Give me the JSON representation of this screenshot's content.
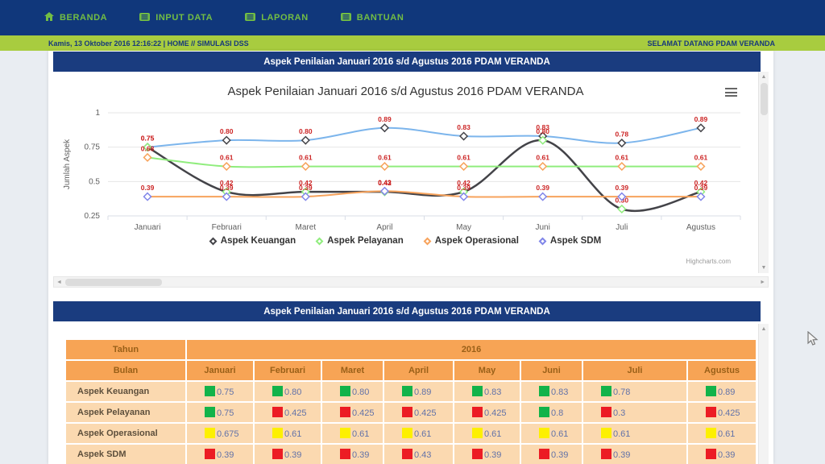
{
  "nav": {
    "items": [
      {
        "label": "BERANDA"
      },
      {
        "label": "INPUT DATA"
      },
      {
        "label": "LAPORAN"
      },
      {
        "label": "BANTUAN"
      }
    ]
  },
  "breadcrumb": {
    "left": "Kamis, 13 Oktober 2016 12:16:22 | HOME // SIMULASI DSS",
    "right": "SELAMAT DATANG PDAM VERANDA"
  },
  "panels": {
    "chart_header": "Aspek Penilaian Januari 2016 s/d Agustus 2016 PDAM VERANDA",
    "table_header": "Aspek Penilaian Januari 2016 s/d Agustus 2016 PDAM VERANDA"
  },
  "chart_data": {
    "type": "line",
    "title": "Aspek Penilaian Januari 2016 s/d Agustus 2016 PDAM VERANDA",
    "categories": [
      "Januari",
      "Februari",
      "Maret",
      "April",
      "May",
      "Juni",
      "Juli",
      "Agustus"
    ],
    "ylabel": "Jumlah Aspek",
    "ylim": [
      0.25,
      1
    ],
    "yticks": [
      1,
      0.75,
      0.5,
      0.25
    ],
    "grid": true,
    "legend_position": "bottom",
    "data_label_color": "#cc2424",
    "watermark": "Highcharts.com",
    "series": [
      {
        "name": "Aspek Keuangan",
        "line_color": "#7cb5ec",
        "marker_color": "#434348",
        "values": [
          0.75,
          0.8,
          0.8,
          0.89,
          0.83,
          0.83,
          0.78,
          0.89
        ]
      },
      {
        "name": "Aspek Pelayanan",
        "line_color": "#434348",
        "marker_color": "#90ed7d",
        "values": [
          0.75,
          0.425,
          0.425,
          0.425,
          0.425,
          0.8,
          0.3,
          0.425
        ]
      },
      {
        "name": "Aspek Operasional",
        "line_color": "#90ed7d",
        "marker_color": "#f7a35c",
        "values": [
          0.675,
          0.61,
          0.61,
          0.61,
          0.61,
          0.61,
          0.61,
          0.61
        ]
      },
      {
        "name": "Aspek SDM",
        "line_color": "#f7a35c",
        "marker_color": "#8085e9",
        "values": [
          0.39,
          0.39,
          0.39,
          0.43,
          0.39,
          0.39,
          0.39,
          0.39
        ]
      }
    ]
  },
  "table": {
    "year_label": "Tahun",
    "year_value": "2016",
    "month_label": "Bulan",
    "months": [
      "Januari",
      "Februari",
      "Maret",
      "April",
      "May",
      "Juni",
      "Juli",
      "Agustus"
    ],
    "status_colors": {
      "green": "#12b34a",
      "red": "#ec1c24",
      "yellow": "#fdf000"
    },
    "rows": [
      {
        "label": "Aspek Keuangan",
        "cells": [
          {
            "color": "green",
            "value": "0.75"
          },
          {
            "color": "green",
            "value": "0.80"
          },
          {
            "color": "green",
            "value": "0.80"
          },
          {
            "color": "green",
            "value": "0.89"
          },
          {
            "color": "green",
            "value": "0.83"
          },
          {
            "color": "green",
            "value": "0.83"
          },
          {
            "color": "green",
            "value": "0.78"
          },
          {
            "color": "green",
            "value": "0.89"
          }
        ]
      },
      {
        "label": "Aspek Pelayanan",
        "cells": [
          {
            "color": "green",
            "value": "0.75"
          },
          {
            "color": "red",
            "value": "0.425"
          },
          {
            "color": "red",
            "value": "0.425"
          },
          {
            "color": "red",
            "value": "0.425"
          },
          {
            "color": "red",
            "value": "0.425"
          },
          {
            "color": "green",
            "value": "0.8"
          },
          {
            "color": "red",
            "value": "0.3"
          },
          {
            "color": "red",
            "value": "0.425"
          }
        ]
      },
      {
        "label": "Aspek Operasional",
        "cells": [
          {
            "color": "yellow",
            "value": "0.675"
          },
          {
            "color": "yellow",
            "value": "0.61"
          },
          {
            "color": "yellow",
            "value": "0.61"
          },
          {
            "color": "yellow",
            "value": "0.61"
          },
          {
            "color": "yellow",
            "value": "0.61"
          },
          {
            "color": "yellow",
            "value": "0.61"
          },
          {
            "color": "yellow",
            "value": "0.61"
          },
          {
            "color": "yellow",
            "value": "0.61"
          }
        ]
      },
      {
        "label": "Aspek SDM",
        "cells": [
          {
            "color": "red",
            "value": "0.39"
          },
          {
            "color": "red",
            "value": "0.39"
          },
          {
            "color": "red",
            "value": "0.39"
          },
          {
            "color": "red",
            "value": "0.43"
          },
          {
            "color": "red",
            "value": "0.39"
          },
          {
            "color": "red",
            "value": "0.39"
          },
          {
            "color": "red",
            "value": "0.39"
          },
          {
            "color": "red",
            "value": "0.39"
          }
        ]
      }
    ]
  },
  "glyphs": {
    "up": "▲",
    "down": "▼",
    "left": "◄",
    "right": "►"
  }
}
